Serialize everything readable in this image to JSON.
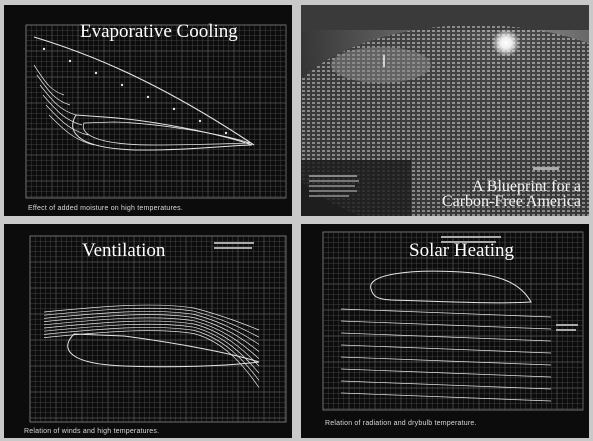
{
  "panels": [
    {
      "id": "evaporative",
      "title": "Evaporative Cooling",
      "caption": "Effect of added moisture on high temperatures."
    },
    {
      "id": "ventilation",
      "title": "Ventilation",
      "caption": "Relation of winds and high temperatures."
    },
    {
      "id": "solar",
      "title": "Solar Heating",
      "caption": "Relation of radiation and drybulb temperature."
    }
  ],
  "magazine": {
    "headline_line1": "A Blueprint for a",
    "headline_line2": "Carbon-Free America"
  },
  "colors": {
    "background": "#c9c9c9",
    "panel": "#0c0c0c",
    "grid": "#5a5a5a",
    "curve": "#e6e6e6"
  }
}
